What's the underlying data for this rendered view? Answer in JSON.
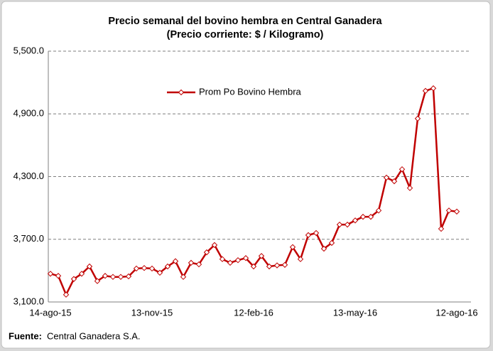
{
  "chart_data": {
    "type": "line",
    "title": "Precio semanal del bovino  hembra en Central Ganadera",
    "subtitle": "(Precio corriente: $ / Kilogramo)",
    "categories": [
      "14-ago-15",
      null,
      null,
      null,
      null,
      null,
      null,
      null,
      null,
      null,
      null,
      null,
      null,
      "13-nov-15",
      null,
      null,
      null,
      null,
      null,
      null,
      null,
      null,
      null,
      null,
      null,
      null,
      "12-feb-16",
      null,
      null,
      null,
      null,
      null,
      null,
      null,
      null,
      null,
      null,
      null,
      null,
      "13-may-16",
      null,
      null,
      null,
      null,
      null,
      null,
      null,
      null,
      null,
      null,
      null,
      null,
      "12-ago-16"
    ],
    "series": [
      {
        "name": "Prom Po Bovino Hembra",
        "color": "#c00000",
        "values": [
          3370,
          3350,
          3170,
          3320,
          3370,
          3440,
          3300,
          3350,
          3340,
          3340,
          3345,
          3420,
          3425,
          3420,
          3380,
          3440,
          3490,
          3340,
          3475,
          3460,
          3575,
          3645,
          3510,
          3475,
          3500,
          3520,
          3440,
          3540,
          3440,
          3450,
          3455,
          3625,
          3510,
          3740,
          3760,
          3610,
          3665,
          3840,
          3840,
          3880,
          3915,
          3915,
          3975,
          4290,
          4255,
          4370,
          4190,
          4855,
          5120,
          5145,
          3800,
          3975,
          3965
        ]
      }
    ],
    "ylim": [
      3100,
      5500
    ],
    "yticks": [
      {
        "value": 3100,
        "label": "3,100.0"
      },
      {
        "value": 3700,
        "label": "3,700.0"
      },
      {
        "value": 4300,
        "label": "4,300.0"
      },
      {
        "value": 4900,
        "label": "4,900.0"
      },
      {
        "value": 5500,
        "label": "5,500.0"
      }
    ],
    "grid": true,
    "legend": "top-center",
    "source_label": "Fuente:",
    "source": "Central Ganadera S.A."
  }
}
